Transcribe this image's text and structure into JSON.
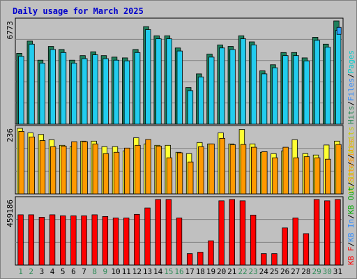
{
  "chart_data": {
    "type": "bar",
    "title": "Daily usage for March 2025",
    "days": [
      "1",
      "2",
      "3",
      "4",
      "5",
      "6",
      "7",
      "8",
      "9",
      "10",
      "11",
      "12",
      "13",
      "14",
      "15",
      "16",
      "17",
      "18",
      "19",
      "20",
      "21",
      "22",
      "23",
      "24",
      "25",
      "26",
      "27",
      "28",
      "29",
      "30",
      "31"
    ],
    "weekend_days": [
      "1",
      "2",
      "8",
      "9",
      "15",
      "16",
      "22",
      "23",
      "29",
      "30"
    ],
    "colors": {
      "pages": "#00aaaa",
      "files": "#2e8bff",
      "hits": "#00bbbb",
      "hits_bar": "#1e7f5c",
      "files_bar": "#22ccee",
      "pages_bar": "#2aa0ff",
      "visits": "#ffff33",
      "sites": "#ff9900",
      "kbf": "#ff0000",
      "kbin": "#2e8bff",
      "kbout": "#00aa00",
      "weekday_label": "#000000",
      "weekend_label": "#2e8b57",
      "title": "#0000cc",
      "background": "#c0c0c0"
    },
    "panels": [
      {
        "name": "hits-files-pages",
        "ymax_label": "6773",
        "ymax": 6773,
        "legend": [
          {
            "text": "Hits",
            "color": "#2e8b57"
          },
          {
            "text": "/",
            "color": "#000000"
          },
          {
            "text": "Files",
            "color": "#2e8bff"
          },
          {
            "text": "/",
            "color": "#000000"
          },
          {
            "text": "Pages",
            "color": "#00cccc"
          }
        ],
        "series": [
          {
            "name": "Hits",
            "color": "#1e7f5c",
            "values": [
              4650,
              5450,
              4200,
              5100,
              4900,
              4200,
              4500,
              4750,
              4500,
              4400,
              4350,
              4900,
              6400,
              5800,
              5800,
              5000,
              2400,
              3300,
              4600,
              5200,
              5100,
              5800,
              5400,
              3500,
              3900,
              4700,
              4700,
              4350,
              5700,
              5250,
              6773
            ]
          },
          {
            "name": "Files",
            "color": "#22ccee",
            "values": [
              4450,
              5250,
              4000,
              4900,
              4700,
              4000,
              4300,
              4550,
              4300,
              4200,
              4150,
              4700,
              6200,
              5600,
              5600,
              4800,
              2200,
              3100,
              4400,
              5000,
              4900,
              5600,
              5200,
              3300,
              3700,
              4500,
              4500,
              4150,
              5500,
              5050,
              6150
            ]
          },
          {
            "name": "Pages",
            "color": "#2aa0ff",
            "values": [
              40,
              40,
              40,
              40,
              40,
              40,
              40,
              40,
              40,
              40,
              40,
              40,
              40,
              40,
              40,
              40,
              40,
              40,
              40,
              40,
              40,
              40,
              40,
              40,
              40,
              40,
              40,
              40,
              40,
              40,
              6350
            ]
          }
        ]
      },
      {
        "name": "visits-sites",
        "ymax_label": "236",
        "ymax": 236,
        "legend": [
          {
            "text": "Visits",
            "color": "#cccc00"
          },
          {
            "text": "/",
            "color": "#000000"
          },
          {
            "text": "Sites",
            "color": "#ff9900"
          }
        ],
        "series": [
          {
            "name": "Visits",
            "color": "#ffff33",
            "values": [
              236,
              220,
              214,
              195,
              175,
              170,
              190,
              190,
              170,
              170,
              155,
              202,
              180,
              175,
              175,
              150,
              145,
              185,
              180,
              220,
              180,
              232,
              180,
              150,
              145,
              155,
              195,
              145,
              140,
              176,
              190
            ]
          },
          {
            "name": "Sites",
            "color": "#ff9900",
            "values": [
              225,
              205,
              192,
              170,
              172,
              188,
              188,
              180,
              145,
              150,
              165,
              175,
              196,
              172,
              130,
              148,
              115,
              170,
              180,
              200,
              177,
              178,
              168,
              152,
              130,
              168,
              130,
              134,
              130,
              125,
              178
            ]
          }
        ]
      },
      {
        "name": "kb-in-out",
        "ymax_label": "459186",
        "ymax": 459186,
        "legend": [
          {
            "text": "KB F",
            "color": "#ff0000"
          },
          {
            "text": "/",
            "color": "#000000"
          },
          {
            "text": "KB In",
            "color": "#2e8bff"
          },
          {
            "text": "/",
            "color": "#000000"
          },
          {
            "text": "KB Out",
            "color": "#00aa00"
          },
          {
            "text": "/",
            "color": "#000000"
          },
          {
            "text": "Sites",
            "color": "#ff9900"
          },
          {
            "text": "/",
            "color": "#000000"
          },
          {
            "text": "Visits",
            "color": "#cccc00"
          }
        ],
        "series": [
          {
            "name": "KB F",
            "color": "#ff0000",
            "values": [
              352000,
              352000,
              335000,
              352000,
              345000,
              345000,
              345000,
              352000,
              340000,
              330000,
              330000,
              355000,
              400000,
              459186,
              459186,
              330000,
              80000,
              90000,
              170000,
              450000,
              459186,
              450000,
              350000,
              80000,
              80000,
              260000,
              330000,
              220000,
              459186,
              450000,
              459186
            ]
          }
        ]
      }
    ]
  }
}
